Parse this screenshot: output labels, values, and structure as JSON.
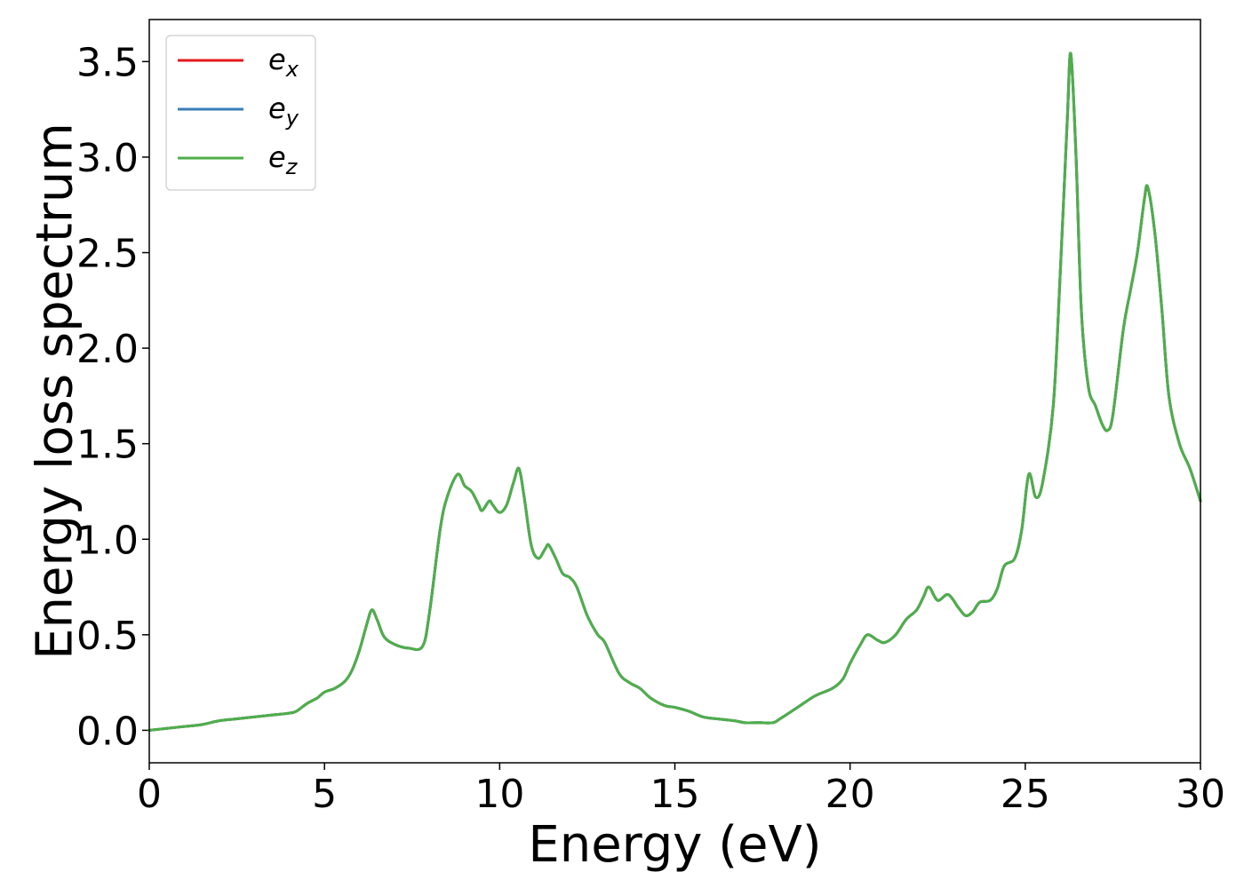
{
  "chart_data": {
    "type": "line",
    "title": "",
    "xlabel": "Energy (eV)",
    "ylabel": "Energy loss spectrum",
    "xlim": [
      0,
      30
    ],
    "ylim": [
      -0.17,
      3.72
    ],
    "xticks": [
      0,
      5,
      10,
      15,
      20,
      25,
      30
    ],
    "xtick_labels": [
      "0",
      "5",
      "10",
      "15",
      "20",
      "25",
      "30"
    ],
    "yticks": [
      0.0,
      0.5,
      1.0,
      1.5,
      2.0,
      2.5,
      3.0,
      3.5
    ],
    "ytick_labels": [
      "0.0",
      "0.5",
      "1.0",
      "1.5",
      "2.0",
      "2.5",
      "3.0",
      "3.5"
    ],
    "grid": false,
    "legend_position": "top-left",
    "x": [
      0,
      0.5,
      1.0,
      1.5,
      2.0,
      2.5,
      3.0,
      3.5,
      4.0,
      4.2,
      4.5,
      4.8,
      5.0,
      5.3,
      5.6,
      5.8,
      6.0,
      6.2,
      6.35,
      6.5,
      6.7,
      7.0,
      7.4,
      7.8,
      8.0,
      8.3,
      8.5,
      8.8,
      9.0,
      9.2,
      9.4,
      9.5,
      9.7,
      9.8,
      10.0,
      10.2,
      10.4,
      10.55,
      10.7,
      10.9,
      11.1,
      11.3,
      11.4,
      11.6,
      11.8,
      12.0,
      12.2,
      12.5,
      12.8,
      13.0,
      13.4,
      13.7,
      14.0,
      14.3,
      14.7,
      15.0,
      15.4,
      15.8,
      16.2,
      16.7,
      17.0,
      17.4,
      17.8,
      18.0,
      18.5,
      19.0,
      19.5,
      19.8,
      20.0,
      20.3,
      20.5,
      20.8,
      21.0,
      21.3,
      21.6,
      21.9,
      22.1,
      22.25,
      22.5,
      22.8,
      23.1,
      23.3,
      23.5,
      23.7,
      24.0,
      24.2,
      24.4,
      24.7,
      24.9,
      25.1,
      25.3,
      25.5,
      25.8,
      26.0,
      26.2,
      26.3,
      26.45,
      26.6,
      26.8,
      27.0,
      27.2,
      27.35,
      27.5,
      27.8,
      28.0,
      28.2,
      28.4,
      28.5,
      28.7,
      28.9,
      29.1,
      29.4,
      29.7,
      30.0
    ],
    "series": [
      {
        "name": "e_x",
        "values": [
          0.0,
          0.01,
          0.02,
          0.03,
          0.05,
          0.06,
          0.07,
          0.08,
          0.09,
          0.1,
          0.14,
          0.17,
          0.2,
          0.22,
          0.26,
          0.32,
          0.42,
          0.55,
          0.63,
          0.58,
          0.49,
          0.45,
          0.43,
          0.44,
          0.62,
          1.05,
          1.22,
          1.34,
          1.28,
          1.25,
          1.18,
          1.15,
          1.2,
          1.18,
          1.14,
          1.18,
          1.3,
          1.37,
          1.22,
          0.97,
          0.9,
          0.95,
          0.97,
          0.9,
          0.82,
          0.8,
          0.75,
          0.6,
          0.5,
          0.46,
          0.3,
          0.25,
          0.22,
          0.17,
          0.13,
          0.12,
          0.1,
          0.07,
          0.06,
          0.05,
          0.04,
          0.04,
          0.04,
          0.06,
          0.12,
          0.18,
          0.22,
          0.27,
          0.35,
          0.45,
          0.5,
          0.47,
          0.46,
          0.5,
          0.58,
          0.63,
          0.7,
          0.75,
          0.68,
          0.71,
          0.64,
          0.6,
          0.62,
          0.67,
          0.68,
          0.74,
          0.86,
          0.9,
          1.05,
          1.34,
          1.22,
          1.3,
          1.7,
          2.4,
          3.2,
          3.54,
          3.0,
          2.2,
          1.8,
          1.7,
          1.6,
          1.57,
          1.65,
          2.1,
          2.3,
          2.5,
          2.78,
          2.84,
          2.6,
          2.2,
          1.75,
          1.5,
          1.37,
          1.2
        ]
      },
      {
        "name": "e_y",
        "values": [
          0.0,
          0.01,
          0.02,
          0.03,
          0.05,
          0.06,
          0.07,
          0.08,
          0.09,
          0.1,
          0.14,
          0.17,
          0.2,
          0.22,
          0.26,
          0.32,
          0.42,
          0.55,
          0.63,
          0.58,
          0.49,
          0.45,
          0.43,
          0.44,
          0.62,
          1.05,
          1.22,
          1.34,
          1.28,
          1.25,
          1.18,
          1.15,
          1.2,
          1.18,
          1.14,
          1.18,
          1.3,
          1.37,
          1.22,
          0.97,
          0.9,
          0.95,
          0.97,
          0.9,
          0.82,
          0.8,
          0.75,
          0.6,
          0.5,
          0.46,
          0.3,
          0.25,
          0.22,
          0.17,
          0.13,
          0.12,
          0.1,
          0.07,
          0.06,
          0.05,
          0.04,
          0.04,
          0.04,
          0.06,
          0.12,
          0.18,
          0.22,
          0.27,
          0.35,
          0.45,
          0.5,
          0.47,
          0.46,
          0.5,
          0.58,
          0.63,
          0.7,
          0.75,
          0.68,
          0.71,
          0.64,
          0.6,
          0.62,
          0.67,
          0.68,
          0.74,
          0.86,
          0.9,
          1.05,
          1.34,
          1.22,
          1.3,
          1.7,
          2.4,
          3.2,
          3.54,
          3.0,
          2.2,
          1.8,
          1.7,
          1.6,
          1.57,
          1.65,
          2.1,
          2.3,
          2.5,
          2.78,
          2.84,
          2.6,
          2.2,
          1.75,
          1.5,
          1.37,
          1.2
        ]
      },
      {
        "name": "e_z",
        "values": [
          0.0,
          0.01,
          0.02,
          0.03,
          0.05,
          0.06,
          0.07,
          0.08,
          0.09,
          0.1,
          0.14,
          0.17,
          0.2,
          0.22,
          0.26,
          0.32,
          0.42,
          0.55,
          0.63,
          0.58,
          0.49,
          0.45,
          0.43,
          0.44,
          0.62,
          1.05,
          1.22,
          1.34,
          1.28,
          1.25,
          1.18,
          1.15,
          1.2,
          1.18,
          1.14,
          1.18,
          1.3,
          1.37,
          1.22,
          0.97,
          0.9,
          0.95,
          0.97,
          0.9,
          0.82,
          0.8,
          0.75,
          0.6,
          0.5,
          0.46,
          0.3,
          0.25,
          0.22,
          0.17,
          0.13,
          0.12,
          0.1,
          0.07,
          0.06,
          0.05,
          0.04,
          0.04,
          0.04,
          0.06,
          0.12,
          0.18,
          0.22,
          0.27,
          0.35,
          0.45,
          0.5,
          0.47,
          0.46,
          0.5,
          0.58,
          0.63,
          0.7,
          0.75,
          0.68,
          0.71,
          0.64,
          0.6,
          0.62,
          0.67,
          0.68,
          0.74,
          0.86,
          0.9,
          1.05,
          1.34,
          1.22,
          1.3,
          1.7,
          2.4,
          3.2,
          3.54,
          3.0,
          2.2,
          1.8,
          1.7,
          1.6,
          1.57,
          1.65,
          2.1,
          2.3,
          2.5,
          2.78,
          2.84,
          2.6,
          2.2,
          1.75,
          1.5,
          1.37,
          1.2
        ]
      }
    ],
    "legend": [
      {
        "base": "e",
        "sub": "x",
        "color": "#e41a1c"
      },
      {
        "base": "e",
        "sub": "y",
        "color": "#377eb8"
      },
      {
        "base": "e",
        "sub": "z",
        "color": "#4daf4a"
      }
    ]
  }
}
